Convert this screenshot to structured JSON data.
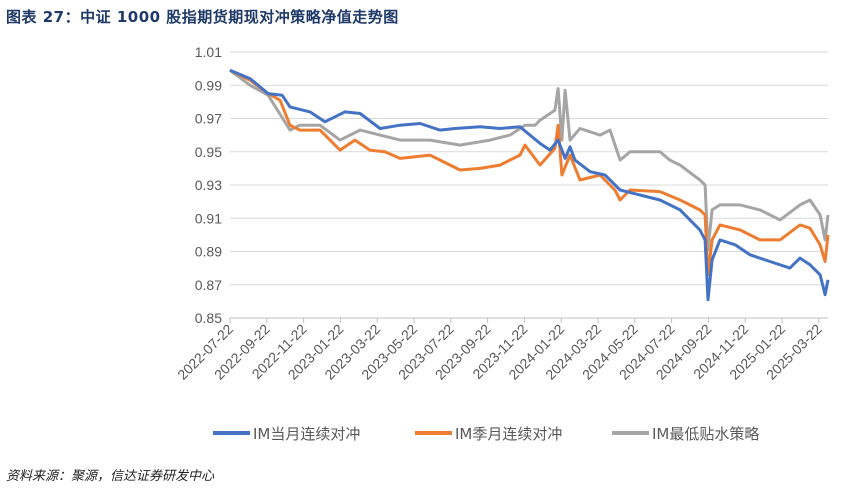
{
  "title": "图表 27：中证 1000 股指期货期现对冲策略净值走势图",
  "source": "资料来源：聚源，信达证券研发中心",
  "chart_data": {
    "type": "line",
    "title": "中证 1000 股指期货期现对冲策略净值走势图",
    "xlabel": "",
    "ylabel": "",
    "x_unit": "months since 2022-07-22",
    "xlim": [
      0,
      32.5
    ],
    "ylim": [
      0.85,
      1.01
    ],
    "yticks": [
      0.85,
      0.87,
      0.89,
      0.91,
      0.93,
      0.95,
      0.97,
      0.99,
      1.01
    ],
    "ytick_labels": [
      "0.85",
      "0.87",
      "0.89",
      "0.91",
      "0.93",
      "0.95",
      "0.97",
      "0.99",
      "1.01"
    ],
    "xtick_labels": [
      "2022-07-22",
      "2022-09-22",
      "2022-11-22",
      "2023-01-22",
      "2023-03-22",
      "2023-05-22",
      "2023-07-22",
      "2023-09-22",
      "2023-11-22",
      "2024-01-22",
      "2024-03-22",
      "2024-05-22",
      "2024-07-22",
      "2024-09-22",
      "2024-11-22",
      "2025-01-22",
      "2025-03-22"
    ],
    "grid": true,
    "legend": "bottom",
    "series": [
      {
        "name": "IM当月连续对冲",
        "color": "#4472c4",
        "points": [
          [
            0,
            0.999
          ],
          [
            1.09,
            0.994
          ],
          [
            2.07,
            0.985
          ],
          [
            2.83,
            0.984
          ],
          [
            3.26,
            0.977
          ],
          [
            4.35,
            0.974
          ],
          [
            5.16,
            0.968
          ],
          [
            6.25,
            0.974
          ],
          [
            7.07,
            0.973
          ],
          [
            8.15,
            0.964
          ],
          [
            9.24,
            0.966
          ],
          [
            10.33,
            0.967
          ],
          [
            11.41,
            0.963
          ],
          [
            12.23,
            0.964
          ],
          [
            13.59,
            0.965
          ],
          [
            14.67,
            0.964
          ],
          [
            15.76,
            0.965
          ],
          [
            16.85,
            0.955
          ],
          [
            17.39,
            0.951
          ],
          [
            17.83,
            0.957
          ],
          [
            18.21,
            0.946
          ],
          [
            18.48,
            0.953
          ],
          [
            18.75,
            0.945
          ],
          [
            19.57,
            0.938
          ],
          [
            20.38,
            0.936
          ],
          [
            21.2,
            0.927
          ],
          [
            22.28,
            0.924
          ],
          [
            23.37,
            0.921
          ],
          [
            24.46,
            0.915
          ],
          [
            25.54,
            0.903
          ],
          [
            25.82,
            0.897
          ],
          [
            25.98,
            0.861
          ],
          [
            26.2,
            0.885
          ],
          [
            26.63,
            0.897
          ],
          [
            27.45,
            0.894
          ],
          [
            28.26,
            0.888
          ],
          [
            29.35,
            0.884
          ],
          [
            30.43,
            0.88
          ],
          [
            30.98,
            0.886
          ],
          [
            31.52,
            0.882
          ],
          [
            32.07,
            0.876
          ],
          [
            32.34,
            0.864
          ],
          [
            32.5,
            0.873
          ]
        ]
      },
      {
        "name": "IM季月连续对冲",
        "color": "#ed7d31",
        "points": [
          [
            0,
            0.999
          ],
          [
            1.09,
            0.993
          ],
          [
            2.07,
            0.985
          ],
          [
            2.72,
            0.981
          ],
          [
            3.26,
            0.966
          ],
          [
            3.8,
            0.963
          ],
          [
            4.89,
            0.963
          ],
          [
            5.98,
            0.951
          ],
          [
            6.79,
            0.957
          ],
          [
            7.61,
            0.951
          ],
          [
            8.42,
            0.95
          ],
          [
            9.24,
            0.946
          ],
          [
            10.87,
            0.948
          ],
          [
            12.5,
            0.939
          ],
          [
            13.59,
            0.94
          ],
          [
            14.67,
            0.942
          ],
          [
            15.76,
            0.948
          ],
          [
            16.03,
            0.954
          ],
          [
            16.85,
            0.942
          ],
          [
            17.66,
            0.952
          ],
          [
            17.83,
            0.966
          ],
          [
            18.04,
            0.936
          ],
          [
            18.48,
            0.948
          ],
          [
            19.02,
            0.933
          ],
          [
            20.11,
            0.936
          ],
          [
            20.92,
            0.927
          ],
          [
            21.2,
            0.921
          ],
          [
            21.74,
            0.927
          ],
          [
            23.37,
            0.926
          ],
          [
            24.46,
            0.921
          ],
          [
            25.54,
            0.915
          ],
          [
            25.82,
            0.912
          ],
          [
            25.98,
            0.876
          ],
          [
            26.2,
            0.897
          ],
          [
            26.63,
            0.906
          ],
          [
            27.72,
            0.903
          ],
          [
            28.8,
            0.897
          ],
          [
            29.89,
            0.897
          ],
          [
            30.98,
            0.906
          ],
          [
            31.52,
            0.904
          ],
          [
            32.07,
            0.894
          ],
          [
            32.34,
            0.884
          ],
          [
            32.5,
            0.9
          ]
        ]
      },
      {
        "name": "IM最低贴水策略",
        "color": "#a5a5a5",
        "points": [
          [
            0,
            0.999
          ],
          [
            1.09,
            0.99
          ],
          [
            2.07,
            0.984
          ],
          [
            3.26,
            0.963
          ],
          [
            3.8,
            0.966
          ],
          [
            4.89,
            0.966
          ],
          [
            5.98,
            0.957
          ],
          [
            7.07,
            0.963
          ],
          [
            8.15,
            0.96
          ],
          [
            9.24,
            0.957
          ],
          [
            10.87,
            0.957
          ],
          [
            12.5,
            0.954
          ],
          [
            14.13,
            0.957
          ],
          [
            15.22,
            0.96
          ],
          [
            16.03,
            0.966
          ],
          [
            16.58,
            0.966
          ],
          [
            16.85,
            0.969
          ],
          [
            17.66,
            0.975
          ],
          [
            17.83,
            0.988
          ],
          [
            18.04,
            0.957
          ],
          [
            18.21,
            0.987
          ],
          [
            18.48,
            0.957
          ],
          [
            19.02,
            0.964
          ],
          [
            20.11,
            0.96
          ],
          [
            20.65,
            0.963
          ],
          [
            21.2,
            0.945
          ],
          [
            21.74,
            0.95
          ],
          [
            23.37,
            0.95
          ],
          [
            23.91,
            0.945
          ],
          [
            24.46,
            0.942
          ],
          [
            25.54,
            0.933
          ],
          [
            25.82,
            0.93
          ],
          [
            25.98,
            0.891
          ],
          [
            26.2,
            0.915
          ],
          [
            26.63,
            0.918
          ],
          [
            27.72,
            0.918
          ],
          [
            28.8,
            0.915
          ],
          [
            29.89,
            0.909
          ],
          [
            30.98,
            0.918
          ],
          [
            31.52,
            0.921
          ],
          [
            32.07,
            0.912
          ],
          [
            32.34,
            0.897
          ],
          [
            32.5,
            0.912
          ]
        ]
      }
    ]
  }
}
